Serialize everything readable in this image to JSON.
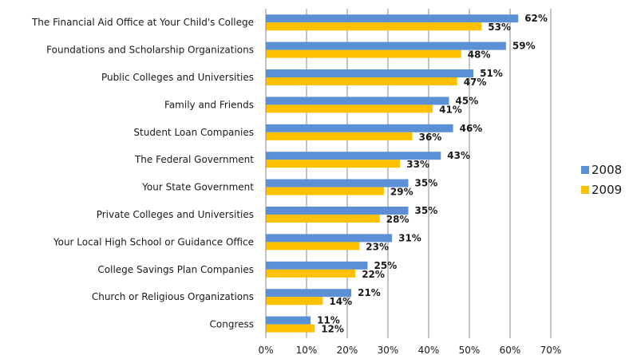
{
  "chart_data": {
    "type": "bar",
    "orientation": "horizontal",
    "categories": [
      "The Financial Aid Office at Your Child's College",
      "Foundations and Scholarship Organizations",
      "Public Colleges and Universities",
      "Family and Friends",
      "Student Loan Companies",
      "The Federal Government",
      "Your State Government",
      "Private Colleges and Universities",
      "Your Local High School or Guidance Office",
      "College Savings Plan Companies",
      "Church or Religious Organizations",
      "Congress"
    ],
    "series": [
      {
        "name": "2008",
        "color": "#5B8FD6",
        "values": [
          62,
          59,
          51,
          45,
          46,
          43,
          35,
          35,
          31,
          25,
          21,
          11
        ],
        "labels": [
          "62%",
          "59%",
          "51%",
          "45%",
          "46%",
          "43%",
          "35%",
          "35%",
          "31%",
          "25%",
          "21%",
          "11%"
        ]
      },
      {
        "name": "2009",
        "color": "#FFC000",
        "values": [
          53,
          48,
          47,
          41,
          36,
          33,
          29,
          28,
          23,
          22,
          14,
          12
        ],
        "labels": [
          "53%",
          "48%",
          "47%",
          "41%",
          "36%",
          "33%",
          "29%",
          "28%",
          "23%",
          "22%",
          "14%",
          "12%"
        ]
      }
    ],
    "xlim": [
      0,
      70
    ],
    "x_ticks": [
      0,
      10,
      20,
      30,
      40,
      50,
      60,
      70
    ],
    "x_tick_labels": [
      "0%",
      "10%",
      "20%",
      "30%",
      "40%",
      "50%",
      "60%",
      "70%"
    ],
    "grid": true,
    "gridline_color": "#888888",
    "legend_position": "right",
    "title": "",
    "xlabel": "",
    "ylabel": ""
  }
}
